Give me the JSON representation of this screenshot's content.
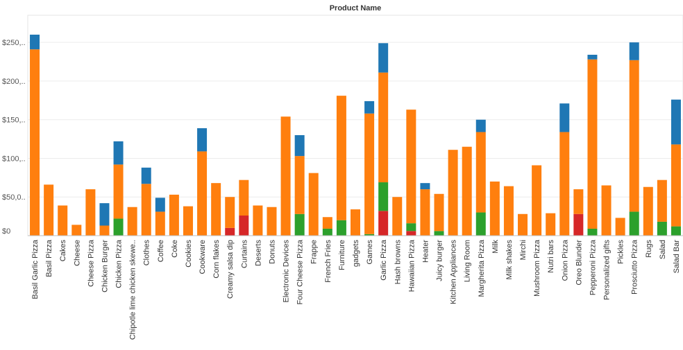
{
  "chart_data": {
    "type": "bar",
    "stacked": true,
    "title": "Product Name",
    "xlabel": "",
    "ylabel": "",
    "ylim": [
      0,
      280000
    ],
    "y_ticks": [
      {
        "value": 0,
        "label": "$0"
      },
      {
        "value": 50000,
        "label": "$50,0.."
      },
      {
        "value": 100000,
        "label": "$100,.."
      },
      {
        "value": 150000,
        "label": "$150,.."
      },
      {
        "value": 200000,
        "label": "$200,.."
      },
      {
        "value": 250000,
        "label": "$250,.."
      }
    ],
    "grid": true,
    "categories": [
      "Basil Garlic Pizza",
      "Basil Pizza",
      "Cakes",
      "Cheese",
      "Cheese Pizza",
      "Chicken Burger",
      "Chicken Pizza",
      "Chipotle lime chicken skewe..",
      "Clothes",
      "Coffee",
      "Coke",
      "Cookies",
      "Cookware",
      "Corn flakes",
      "Creamy salsa dip",
      "Curtains",
      "Deserts",
      "Donuts",
      "Electronic Devices",
      "Four Cheese Pizza",
      "Frappe",
      "French Fries",
      "Furniture",
      "gadgets",
      "Games",
      "Garlic Pizza",
      "Hash browns",
      "Hawaiian Pizza",
      "Heater",
      "Juicy burger",
      "Kitchen Appliances",
      "Living Room",
      "Margherita Pizza",
      "Milk",
      "Milk shakes",
      "Mirchi",
      "Mushroom Pizza",
      "Nutri bars",
      "Onion Pizza",
      "Oreo Blunder",
      "Pepperoni Pizza",
      "Personalized gifts",
      "Pickles",
      "Prosciutto Pizza",
      "Rugs",
      "Salad",
      "Salad Bar"
    ],
    "series": [
      {
        "color": "#d62728",
        "values": [
          0,
          0,
          0,
          0,
          0,
          0,
          0,
          0,
          0,
          0,
          0,
          0,
          0,
          0,
          10000,
          26000,
          0,
          0,
          0,
          0,
          0,
          0,
          0,
          0,
          0,
          32000,
          0,
          6000,
          0,
          0,
          0,
          0,
          0,
          0,
          0,
          0,
          0,
          0,
          0,
          28000,
          0,
          0,
          0,
          0,
          0,
          0,
          0
        ]
      },
      {
        "color": "#2ca02c",
        "values": [
          0,
          0,
          0,
          0,
          0,
          0,
          22000,
          0,
          0,
          0,
          0,
          0,
          0,
          0,
          0,
          0,
          0,
          0,
          0,
          28000,
          0,
          9000,
          20000,
          0,
          2000,
          37000,
          0,
          10000,
          0,
          6000,
          0,
          0,
          30000,
          0,
          0,
          0,
          0,
          0,
          0,
          0,
          9000,
          0,
          0,
          31000,
          0,
          18000,
          12000
        ]
      },
      {
        "color": "#ff7f0e",
        "values": [
          241000,
          66000,
          39000,
          14000,
          60000,
          13000,
          70000,
          37000,
          67000,
          31000,
          53000,
          38000,
          109000,
          68000,
          40000,
          46000,
          39000,
          37000,
          154000,
          75000,
          81000,
          15000,
          161000,
          34000,
          156000,
          142000,
          50000,
          147000,
          60000,
          48000,
          111000,
          115000,
          104000,
          70000,
          64000,
          28000,
          91000,
          29000,
          134000,
          32000,
          219000,
          65000,
          23000,
          196000,
          63000,
          54000,
          106000
        ]
      },
      {
        "color": "#1f77b4",
        "values": [
          19000,
          0,
          0,
          0,
          0,
          29000,
          30000,
          0,
          21000,
          18000,
          0,
          0,
          30000,
          0,
          0,
          0,
          0,
          0,
          0,
          27000,
          0,
          0,
          0,
          0,
          16000,
          38000,
          0,
          0,
          8000,
          0,
          0,
          0,
          16000,
          0,
          0,
          0,
          0,
          0,
          37000,
          0,
          6000,
          0,
          0,
          23000,
          0,
          0,
          58000
        ]
      }
    ]
  }
}
